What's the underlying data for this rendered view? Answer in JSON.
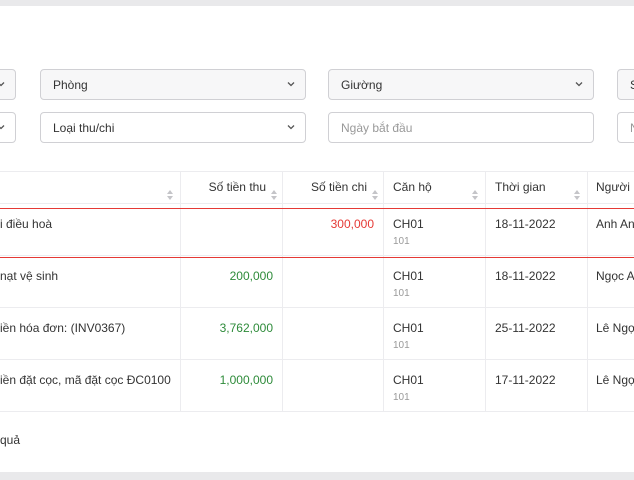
{
  "filters": {
    "room": "Phòng",
    "bed": "Giường",
    "category": "Loại thu/chi",
    "start_date_placeholder": "Ngày bắt đầu",
    "end_date_placeholder_partial": "N",
    "right_select_partial": "S"
  },
  "table": {
    "headers": {
      "description": "",
      "income": "Số tiền thu",
      "expense": "Số tiền chi",
      "apartment": "Căn hộ",
      "time": "Thời gian",
      "person": "Người"
    },
    "rows": [
      {
        "description": "i điều hoà",
        "income": "",
        "expense": "300,000",
        "apartment": "CH01",
        "apartment_sub": "101",
        "time": "18-11-2022",
        "person": "Anh An"
      },
      {
        "description": "nạt vệ sinh",
        "income": "200,000",
        "expense": "",
        "apartment": "CH01",
        "apartment_sub": "101",
        "time": "18-11-2022",
        "person": "Ngọc A"
      },
      {
        "description": "iền hóa đơn: (INV0367)",
        "income": "3,762,000",
        "expense": "",
        "apartment": "CH01",
        "apartment_sub": "101",
        "time": "25-11-2022",
        "person": "Lê Ngọ"
      },
      {
        "description": "iền đặt cọc, mã đặt cọc ĐC0100",
        "income": "1,000,000",
        "expense": "",
        "apartment": "CH01",
        "apartment_sub": "101",
        "time": "17-11-2022",
        "person": "Lê Ngọ"
      }
    ]
  },
  "footer": {
    "text": "quả"
  },
  "colors": {
    "income": "#2e8b3a",
    "expense": "#e53935",
    "highlight": "#e53935"
  }
}
